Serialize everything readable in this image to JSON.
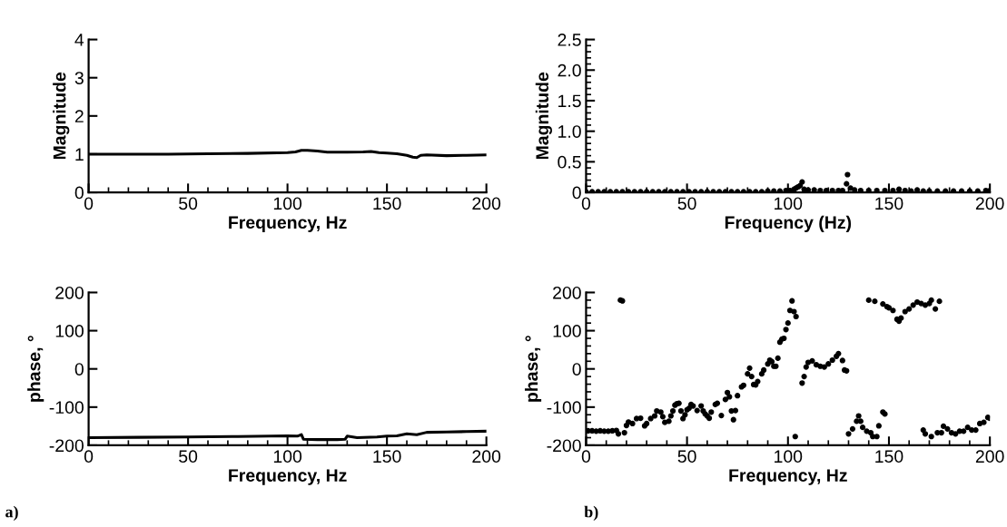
{
  "chart_data": [
    {
      "type": "line",
      "xlabel": "Frequency, Hz",
      "ylabel": "Magnitude",
      "xlim": [
        0,
        200
      ],
      "ylim": [
        0,
        4
      ],
      "xticks": [
        0,
        {
          "value": 10,
          "label": null
        },
        {
          "value": 20,
          "label": null
        },
        {
          "value": 30,
          "label": null
        },
        {
          "value": 40,
          "label": null
        },
        50,
        {
          "value": 60,
          "label": null
        },
        {
          "value": 70,
          "label": null
        },
        {
          "value": 80,
          "label": null
        },
        {
          "value": 90,
          "label": null
        },
        100,
        {
          "value": 110,
          "label": null
        },
        {
          "value": 120,
          "label": null
        },
        {
          "value": 130,
          "label": null
        },
        {
          "value": 140,
          "label": null
        },
        150,
        {
          "value": 160,
          "label": null
        },
        {
          "value": 170,
          "label": null
        },
        {
          "value": 180,
          "label": null
        },
        {
          "value": 190,
          "label": null
        },
        200
      ],
      "yticks": [
        0,
        1,
        2,
        3,
        4
      ],
      "grid": false,
      "marker": "none",
      "line_style": "solid",
      "series": [
        {
          "color": "#000000",
          "x": [
            0,
            20,
            40,
            60,
            80,
            100,
            104,
            107,
            110,
            115,
            120,
            130,
            138,
            142,
            146,
            150,
            155,
            160,
            163,
            165,
            167,
            170,
            180,
            190,
            200
          ],
          "values": [
            1.0,
            1.0,
            1.0,
            1.01,
            1.02,
            1.04,
            1.06,
            1.1,
            1.1,
            1.08,
            1.05,
            1.05,
            1.06,
            1.07,
            1.04,
            1.03,
            1.01,
            0.97,
            0.92,
            0.91,
            0.97,
            0.98,
            0.96,
            0.97,
            0.98
          ]
        }
      ]
    },
    {
      "type": "scatter",
      "xlabel": "Frequency (Hz)",
      "ylabel": "Magnitude",
      "xlim": [
        0,
        200
      ],
      "ylim": [
        0,
        2.5
      ],
      "xticks": [
        0,
        {
          "value": 10,
          "label": null
        },
        {
          "value": 20,
          "label": null
        },
        {
          "value": 30,
          "label": null
        },
        {
          "value": 40,
          "label": null
        },
        50,
        {
          "value": 60,
          "label": null
        },
        {
          "value": 70,
          "label": null
        },
        {
          "value": 80,
          "label": null
        },
        {
          "value": 90,
          "label": null
        },
        100,
        {
          "value": 110,
          "label": null
        },
        {
          "value": 120,
          "label": null
        },
        {
          "value": 130,
          "label": null
        },
        {
          "value": 140,
          "label": null
        },
        150,
        {
          "value": 160,
          "label": null
        },
        {
          "value": 170,
          "label": null
        },
        {
          "value": 180,
          "label": null
        },
        {
          "value": 190,
          "label": null
        },
        200
      ],
      "yticks": [
        {
          "value": 0,
          "label": "0"
        },
        {
          "value": 0.1,
          "label": null
        },
        {
          "value": 0.2,
          "label": null
        },
        {
          "value": 0.3,
          "label": null
        },
        {
          "value": 0.4,
          "label": null
        },
        {
          "value": 0.5,
          "label": "0.5"
        },
        {
          "value": 0.6,
          "label": null
        },
        {
          "value": 0.7,
          "label": null
        },
        {
          "value": 0.8,
          "label": null
        },
        {
          "value": 0.9,
          "label": null
        },
        {
          "value": 1.0,
          "label": "1.0"
        },
        {
          "value": 1.1,
          "label": null
        },
        {
          "value": 1.2,
          "label": null
        },
        {
          "value": 1.3,
          "label": null
        },
        {
          "value": 1.4,
          "label": null
        },
        {
          "value": 1.5,
          "label": "1.5"
        },
        {
          "value": 1.6,
          "label": null
        },
        {
          "value": 1.7,
          "label": null
        },
        {
          "value": 1.8,
          "label": null
        },
        {
          "value": 1.9,
          "label": null
        },
        {
          "value": 2.0,
          "label": "2.0"
        },
        {
          "value": 2.1,
          "label": null
        },
        {
          "value": 2.2,
          "label": null
        },
        {
          "value": 2.3,
          "label": null
        },
        {
          "value": 2.4,
          "label": null
        },
        {
          "value": 2.5,
          "label": "2.5"
        }
      ],
      "grid": false,
      "marker": "circle",
      "series": [
        {
          "color": "#000000",
          "x": [
            0,
            3,
            6,
            9,
            12,
            15,
            18,
            21,
            24,
            27,
            30,
            33,
            36,
            39,
            42,
            45,
            48,
            51,
            54,
            57,
            60,
            63,
            66,
            69,
            72,
            75,
            78,
            81,
            84,
            87,
            90,
            93,
            96,
            99,
            101,
            103,
            104,
            105,
            106,
            107,
            108,
            110,
            113,
            116,
            119,
            122,
            125,
            127,
            129,
            129.5,
            131,
            133,
            136,
            140,
            144,
            148,
            152,
            155,
            158,
            161,
            164,
            167,
            170,
            174,
            178,
            182,
            186,
            190,
            194,
            198,
            200
          ],
          "values": [
            0.01,
            0.01,
            0.01,
            0.01,
            0.01,
            0.01,
            0.01,
            0.01,
            0.01,
            0.01,
            0.01,
            0.01,
            0.01,
            0.01,
            0.01,
            0.01,
            0.01,
            0.01,
            0.01,
            0.01,
            0.01,
            0.01,
            0.01,
            0.01,
            0.01,
            0.01,
            0.01,
            0.01,
            0.01,
            0.01,
            0.02,
            0.02,
            0.02,
            0.03,
            0.03,
            0.05,
            0.07,
            0.09,
            0.11,
            0.17,
            0.05,
            0.04,
            0.04,
            0.03,
            0.03,
            0.03,
            0.03,
            0.03,
            0.14,
            0.29,
            0.07,
            0.04,
            0.03,
            0.03,
            0.03,
            0.03,
            0.03,
            0.05,
            0.03,
            0.02,
            0.04,
            0.02,
            0.02,
            0.02,
            0.02,
            0.02,
            0.02,
            0.02,
            0.02,
            0.03,
            0.03
          ]
        }
      ]
    },
    {
      "type": "line",
      "xlabel": "Frequency, Hz",
      "ylabel": "phase, °",
      "xlim": [
        0,
        200
      ],
      "ylim": [
        -200,
        200
      ],
      "xticks": [
        0,
        {
          "value": 10,
          "label": null
        },
        {
          "value": 20,
          "label": null
        },
        {
          "value": 30,
          "label": null
        },
        {
          "value": 40,
          "label": null
        },
        50,
        {
          "value": 60,
          "label": null
        },
        {
          "value": 70,
          "label": null
        },
        {
          "value": 80,
          "label": null
        },
        {
          "value": 90,
          "label": null
        },
        100,
        {
          "value": 110,
          "label": null
        },
        {
          "value": 120,
          "label": null
        },
        {
          "value": 130,
          "label": null
        },
        {
          "value": 140,
          "label": null
        },
        150,
        {
          "value": 160,
          "label": null
        },
        {
          "value": 170,
          "label": null
        },
        {
          "value": 180,
          "label": null
        },
        {
          "value": 190,
          "label": null
        },
        200
      ],
      "yticks": [
        -200,
        -100,
        0,
        100,
        200
      ],
      "grid": false,
      "marker": "none",
      "line_style": "solid",
      "annotations": [
        "a)"
      ],
      "series": [
        {
          "color": "#000000",
          "x": [
            0,
            25,
            50,
            75,
            100,
            105,
            107,
            108,
            115,
            125,
            129,
            130,
            135,
            145,
            150,
            155,
            160,
            165,
            170,
            180,
            190,
            200
          ],
          "values": [
            -180,
            -179,
            -178,
            -177,
            -175,
            -176,
            -172,
            -184,
            -185,
            -185,
            -184,
            -176,
            -180,
            -178,
            -176,
            -175,
            -170,
            -172,
            -166,
            -165,
            -164,
            -163
          ]
        }
      ]
    },
    {
      "type": "scatter",
      "xlabel": "Frequency, Hz",
      "ylabel": "phase, °",
      "xlim": [
        0,
        200
      ],
      "ylim": [
        -200,
        200
      ],
      "xticks": [
        0,
        {
          "value": 10,
          "label": null
        },
        {
          "value": 20,
          "label": null
        },
        {
          "value": 30,
          "label": null
        },
        {
          "value": 40,
          "label": null
        },
        50,
        {
          "value": 60,
          "label": null
        },
        {
          "value": 70,
          "label": null
        },
        {
          "value": 80,
          "label": null
        },
        {
          "value": 90,
          "label": null
        },
        100,
        {
          "value": 110,
          "label": null
        },
        {
          "value": 120,
          "label": null
        },
        {
          "value": 130,
          "label": null
        },
        {
          "value": 140,
          "label": null
        },
        150,
        {
          "value": 160,
          "label": null
        },
        {
          "value": 170,
          "label": null
        },
        {
          "value": 180,
          "label": null
        },
        {
          "value": 190,
          "label": null
        },
        200
      ],
      "yticks": [
        {
          "value": -200,
          "label": "-200"
        },
        {
          "value": -180,
          "label": null
        },
        {
          "value": -160,
          "label": null
        },
        {
          "value": -140,
          "label": null
        },
        {
          "value": -120,
          "label": null
        },
        {
          "value": -100,
          "label": "-100"
        },
        {
          "value": -80,
          "label": null
        },
        {
          "value": -60,
          "label": null
        },
        {
          "value": -40,
          "label": null
        },
        {
          "value": -20,
          "label": null
        },
        {
          "value": 0,
          "label": "0"
        },
        {
          "value": 20,
          "label": null
        },
        {
          "value": 40,
          "label": null
        },
        {
          "value": 60,
          "label": null
        },
        {
          "value": 80,
          "label": null
        },
        {
          "value": 100,
          "label": "100"
        },
        {
          "value": 120,
          "label": null
        },
        {
          "value": 140,
          "label": null
        },
        {
          "value": 160,
          "label": null
        },
        {
          "value": 180,
          "label": null
        },
        {
          "value": 200,
          "label": "200"
        }
      ],
      "grid": false,
      "marker": "circle",
      "annotations": [
        "b)"
      ],
      "series": [
        {
          "color": "#000000",
          "x": [
            1,
            3,
            5,
            7,
            9,
            11,
            13,
            15,
            16,
            17,
            18,
            19,
            20,
            21,
            23,
            25,
            27,
            29,
            30,
            32,
            34,
            35,
            37,
            38,
            39,
            41,
            42,
            43,
            44,
            45,
            46,
            47,
            48,
            49,
            50,
            51,
            52,
            53,
            55,
            57,
            58,
            59,
            60,
            61,
            62,
            64,
            65,
            67,
            69,
            70,
            71,
            72,
            73,
            74,
            75,
            77,
            78,
            80,
            81,
            82,
            83,
            84,
            85,
            87,
            88,
            90,
            91,
            92,
            93,
            94,
            95,
            96,
            97,
            98,
            99,
            100,
            101,
            102,
            103,
            104,
            103.6,
            107,
            108,
            109,
            110,
            112,
            114,
            116,
            118,
            120,
            122,
            124,
            125,
            127,
            128,
            129,
            130,
            132,
            134,
            135,
            136,
            137,
            139,
            141,
            142,
            144,
            145,
            147,
            148,
            140,
            143,
            147,
            149,
            150,
            152,
            154,
            155,
            156,
            158,
            160,
            162,
            164,
            166,
            168,
            170,
            171,
            173,
            175,
            167,
            168,
            171,
            174,
            176,
            177,
            179,
            181,
            183,
            185,
            187,
            189,
            191,
            193,
            195,
            197,
            199,
            200
          ],
          "values": [
            -162,
            -162,
            -163,
            -162,
            -163,
            -163,
            -162,
            -161,
            -170,
            180,
            178,
            -167,
            -148,
            -139,
            -143,
            -130,
            -129,
            -149,
            -143,
            -130,
            -123,
            -110,
            -113,
            -125,
            -140,
            -137,
            -123,
            -110,
            -95,
            -91,
            -90,
            -110,
            -130,
            -120,
            -107,
            -103,
            -93,
            -97,
            -109,
            -97,
            -110,
            -118,
            -123,
            -129,
            -113,
            -93,
            -90,
            -122,
            -80,
            -62,
            -73,
            -110,
            -133,
            -109,
            -70,
            -47,
            -43,
            -13,
            2,
            -20,
            -41,
            -42,
            -33,
            -13,
            -3,
            13,
            23,
            19,
            7,
            7,
            28,
            70,
            78,
            80,
            103,
            120,
            153,
            178,
            150,
            137,
            -177,
            -37,
            -20,
            5,
            17,
            21,
            11,
            7,
            5,
            13,
            23,
            33,
            40,
            22,
            -3,
            -5,
            -170,
            -157,
            -137,
            -123,
            -137,
            -153,
            -163,
            -167,
            -177,
            -177,
            -149,
            -113,
            -118,
            180,
            177,
            170,
            163,
            160,
            153,
            130,
            125,
            133,
            150,
            157,
            167,
            175,
            171,
            167,
            171,
            180,
            157,
            177,
            -160,
            -170,
            -177,
            -167,
            -167,
            -150,
            -157,
            -167,
            -170,
            -163,
            -163,
            -153,
            -160,
            -160,
            -143,
            -140,
            -127,
            -129
          ]
        }
      ]
    }
  ]
}
